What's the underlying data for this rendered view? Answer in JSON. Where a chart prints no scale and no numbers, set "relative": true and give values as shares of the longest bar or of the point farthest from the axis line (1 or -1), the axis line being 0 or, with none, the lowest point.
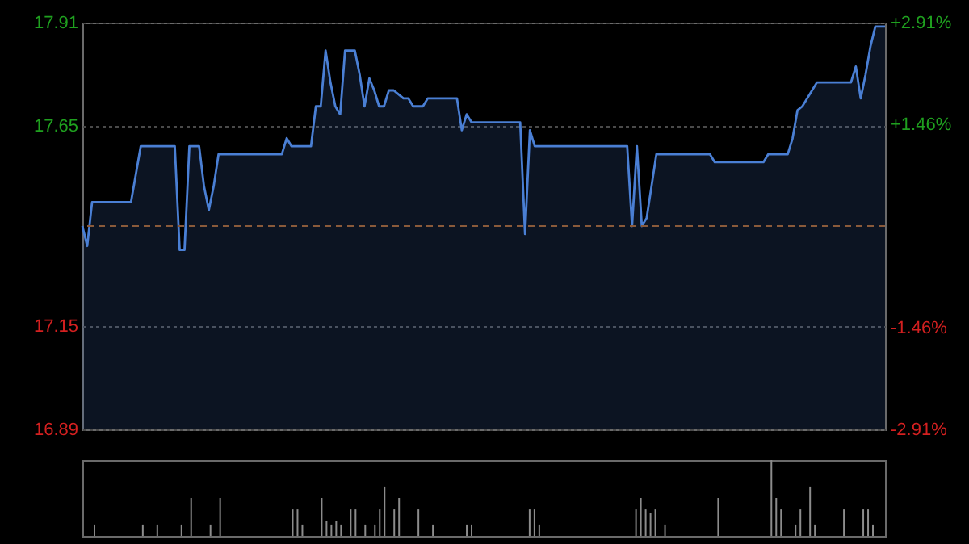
{
  "chart_data": [
    {
      "type": "area",
      "categories": [
        null,
        null,
        null,
        null,
        null,
        null,
        null,
        null,
        null,
        null,
        null,
        null,
        null,
        null,
        null,
        null,
        null,
        null,
        null,
        null,
        null,
        null,
        null,
        null,
        null,
        null,
        null,
        null,
        null,
        null,
        null,
        null,
        null,
        null,
        null,
        null,
        null,
        null,
        null,
        null,
        null,
        null,
        null,
        null,
        null,
        null,
        null,
        null,
        null,
        null,
        null,
        null,
        null,
        null,
        null,
        null,
        null,
        null,
        null,
        null,
        null,
        null,
        null,
        null,
        null,
        null,
        null,
        null,
        null,
        null,
        null,
        null,
        null,
        null,
        null,
        null,
        null,
        null,
        null,
        null,
        null,
        null,
        null,
        null,
        null,
        null,
        null,
        null,
        null,
        null,
        null,
        null,
        null,
        null,
        null,
        null,
        null,
        null,
        null,
        null,
        null,
        null,
        null,
        null,
        null,
        null,
        null,
        null,
        null,
        null,
        null,
        null,
        null,
        null,
        null,
        null,
        null,
        null,
        null,
        null,
        null,
        null,
        null,
        null,
        null,
        null,
        null,
        null,
        null,
        null,
        null,
        null,
        null,
        null,
        null,
        null,
        null,
        null,
        null,
        null,
        null,
        null,
        null,
        null,
        null,
        null,
        null,
        null,
        null,
        null,
        null,
        null,
        null,
        null,
        null,
        null,
        null,
        null,
        null,
        null,
        null,
        null,
        null,
        null,
        null,
        null
      ],
      "series": [
        {
          "color": "#4a7fd4",
          "values": [
            17.4,
            17.35,
            17.46,
            17.46,
            17.46,
            17.46,
            17.46,
            17.46,
            17.46,
            17.46,
            17.46,
            17.53,
            17.6,
            17.6,
            17.6,
            17.6,
            17.6,
            17.6,
            17.6,
            17.6,
            17.34,
            17.34,
            17.6,
            17.6,
            17.6,
            17.5,
            17.44,
            17.5,
            17.58,
            17.58,
            17.58,
            17.58,
            17.58,
            17.58,
            17.58,
            17.58,
            17.58,
            17.58,
            17.58,
            17.58,
            17.58,
            17.58,
            17.62,
            17.6,
            17.6,
            17.6,
            17.6,
            17.6,
            17.7,
            17.7,
            17.84,
            17.76,
            17.7,
            17.68,
            17.84,
            17.84,
            17.84,
            17.78,
            17.7,
            17.77,
            17.74,
            17.7,
            17.7,
            17.74,
            17.74,
            17.73,
            17.72,
            17.72,
            17.7,
            17.7,
            17.7,
            17.72,
            17.72,
            17.72,
            17.72,
            17.72,
            17.72,
            17.72,
            17.64,
            17.68,
            17.66,
            17.66,
            17.66,
            17.66,
            17.66,
            17.66,
            17.66,
            17.66,
            17.66,
            17.66,
            17.66,
            17.38,
            17.64,
            17.6,
            17.6,
            17.6,
            17.6,
            17.6,
            17.6,
            17.6,
            17.6,
            17.6,
            17.6,
            17.6,
            17.6,
            17.6,
            17.6,
            17.6,
            17.6,
            17.6,
            17.6,
            17.6,
            17.6,
            17.4,
            17.6,
            17.4,
            17.42,
            17.5,
            17.58,
            17.58,
            17.58,
            17.58,
            17.58,
            17.58,
            17.58,
            17.58,
            17.58,
            17.58,
            17.58,
            17.58,
            17.56,
            17.56,
            17.56,
            17.56,
            17.56,
            17.56,
            17.56,
            17.56,
            17.56,
            17.56,
            17.56,
            17.58,
            17.58,
            17.58,
            17.58,
            17.58,
            17.62,
            17.69,
            17.7,
            17.72,
            17.74,
            17.76,
            17.76,
            17.76,
            17.76,
            17.76,
            17.76,
            17.76,
            17.76,
            17.8,
            17.72,
            17.78,
            17.85,
            17.9,
            17.9,
            17.9
          ]
        }
      ],
      "ylim": [
        16.89,
        17.91
      ],
      "yticks": [
        16.89,
        17.15,
        17.65,
        17.91
      ],
      "y2lim": [
        -2.91,
        2.91
      ],
      "y2ticks": [
        {
          "value": -2.91,
          "label": "-2.91%"
        },
        {
          "value": -1.46,
          "label": "-1.46%"
        },
        {
          "value": 1.46,
          "label": "+1.46%"
        },
        {
          "value": 2.91,
          "label": "+2.91%"
        }
      ],
      "ref_lines": [
        {
          "axis": "y2",
          "value": 0,
          "color": "#8a5a3a",
          "line_style": "dashed"
        }
      ],
      "grid": true
    },
    {
      "type": "bar",
      "relative": true,
      "color": "#8c8c8c",
      "categories": [
        null,
        null,
        null,
        null,
        null,
        null,
        null,
        null,
        null,
        null,
        null,
        null,
        null,
        null,
        null,
        null,
        null,
        null,
        null,
        null,
        null,
        null,
        null,
        null,
        null,
        null,
        null,
        null,
        null,
        null,
        null,
        null,
        null,
        null,
        null,
        null,
        null,
        null,
        null,
        null,
        null,
        null,
        null,
        null,
        null,
        null,
        null,
        null,
        null,
        null,
        null,
        null,
        null,
        null,
        null,
        null,
        null,
        null,
        null,
        null,
        null,
        null,
        null,
        null,
        null,
        null,
        null,
        null,
        null,
        null,
        null,
        null,
        null,
        null,
        null,
        null,
        null,
        null,
        null,
        null,
        null,
        null,
        null,
        null,
        null,
        null,
        null,
        null,
        null,
        null,
        null,
        null,
        null,
        null,
        null,
        null,
        null,
        null,
        null,
        null,
        null,
        null,
        null,
        null,
        null,
        null,
        null,
        null,
        null,
        null,
        null,
        null,
        null,
        null,
        null,
        null,
        null,
        null,
        null,
        null,
        null,
        null,
        null,
        null,
        null,
        null,
        null,
        null,
        null,
        null,
        null,
        null,
        null,
        null,
        null,
        null,
        null,
        null,
        null,
        null,
        null,
        null,
        null,
        null,
        null,
        null,
        null,
        null,
        null,
        null,
        null,
        null,
        null,
        null,
        null,
        null,
        null,
        null,
        null,
        null,
        null,
        null,
        null,
        null,
        null,
        null
      ],
      "values": [
        0,
        0,
        0.15,
        0,
        0,
        0,
        0,
        0,
        0,
        0,
        0,
        0,
        0.15,
        0,
        0,
        0.15,
        0,
        0,
        0,
        0,
        0.15,
        0,
        0.5,
        0,
        0,
        0,
        0.15,
        0,
        0.5,
        0,
        0,
        0,
        0,
        0,
        0,
        0,
        0,
        0,
        0,
        0,
        0,
        0,
        0,
        0.35,
        0.35,
        0.15,
        0,
        0,
        0,
        0.5,
        0.2,
        0.15,
        0.2,
        0.15,
        0,
        0.35,
        0.35,
        0,
        0.15,
        0,
        0.15,
        0.35,
        0.65,
        0,
        0.35,
        0.5,
        0,
        0,
        0,
        0.35,
        0,
        0,
        0.15,
        0,
        0,
        0,
        0,
        0,
        0,
        0.15,
        0.15,
        0,
        0,
        0,
        0,
        0,
        0,
        0,
        0,
        0,
        0,
        0,
        0.35,
        0.35,
        0.15,
        0,
        0,
        0,
        0,
        0,
        0,
        0,
        0,
        0,
        0,
        0,
        0,
        0,
        0,
        0,
        0,
        0,
        0,
        0,
        0.35,
        0.5,
        0.35,
        0.3,
        0.35,
        0,
        0.15,
        0,
        0,
        0,
        0,
        0,
        0,
        0,
        0,
        0,
        0,
        0.5,
        0,
        0,
        0,
        0,
        0,
        0,
        0,
        0,
        0,
        0,
        1,
        0.5,
        0.35,
        0,
        0,
        0.15,
        0.35,
        0,
        0.65,
        0.15,
        0,
        0,
        0,
        0,
        0,
        0.35,
        0,
        0,
        0,
        0.35,
        0.35,
        0.15,
        0,
        0
      ]
    }
  ]
}
